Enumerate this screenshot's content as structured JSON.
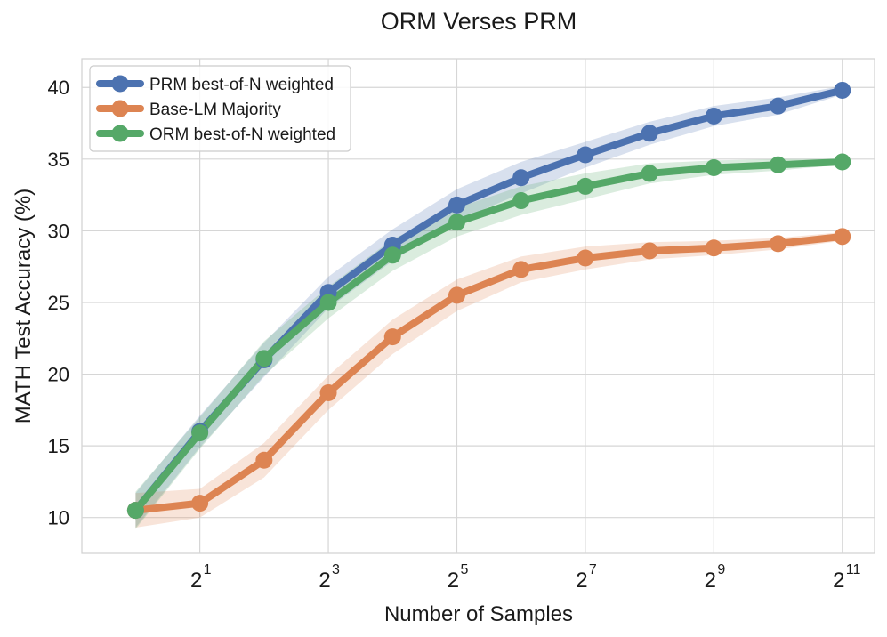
{
  "chart_data": {
    "type": "line",
    "title": "ORM Verses PRM",
    "xlabel": "Number of Samples",
    "ylabel": "MATH Test Accuracy (%)",
    "x_scale": "log2",
    "x": [
      1,
      2,
      4,
      8,
      16,
      32,
      64,
      128,
      256,
      512,
      1024,
      2048
    ],
    "x_ticks": [
      {
        "value": 2,
        "base": "2",
        "exp": "1"
      },
      {
        "value": 8,
        "base": "2",
        "exp": "3"
      },
      {
        "value": 32,
        "base": "2",
        "exp": "5"
      },
      {
        "value": 128,
        "base": "2",
        "exp": "7"
      },
      {
        "value": 512,
        "base": "2",
        "exp": "9"
      },
      {
        "value": 2048,
        "base": "2",
        "exp": "11"
      }
    ],
    "xlim": [
      0.56,
      2900
    ],
    "ylim": [
      7.5,
      42
    ],
    "y_ticks": [
      10,
      15,
      20,
      25,
      30,
      35,
      40
    ],
    "grid": true,
    "legend_position": "top-left",
    "series": [
      {
        "name": "PRM best-of-N weighted",
        "color": "#4c72b0",
        "values": [
          10.5,
          16.0,
          21.0,
          25.7,
          29.0,
          31.8,
          33.7,
          35.3,
          36.8,
          38.0,
          38.7,
          39.8
        ],
        "band": [
          1.2,
          1.1,
          1.2,
          1.1,
          1.1,
          1.1,
          1.1,
          0.9,
          0.8,
          0.7,
          0.6,
          0.3
        ]
      },
      {
        "name": "Base-LM Majority",
        "color": "#dd8452",
        "values": [
          10.5,
          11.0,
          14.0,
          18.7,
          22.6,
          25.5,
          27.3,
          28.1,
          28.6,
          28.8,
          29.1,
          29.6
        ],
        "band": [
          1.2,
          1.0,
          1.2,
          1.2,
          1.2,
          1.1,
          0.9,
          0.8,
          0.6,
          0.5,
          0.4,
          0.3
        ]
      },
      {
        "name": "ORM best-of-N weighted",
        "color": "#55a868",
        "values": [
          10.5,
          15.9,
          21.1,
          25.0,
          28.3,
          30.6,
          32.1,
          33.1,
          34.0,
          34.4,
          34.6,
          34.8
        ],
        "band": [
          1.3,
          1.1,
          1.2,
          1.1,
          1.1,
          1.0,
          1.0,
          0.9,
          0.7,
          0.5,
          0.4,
          0.2
        ]
      }
    ]
  }
}
